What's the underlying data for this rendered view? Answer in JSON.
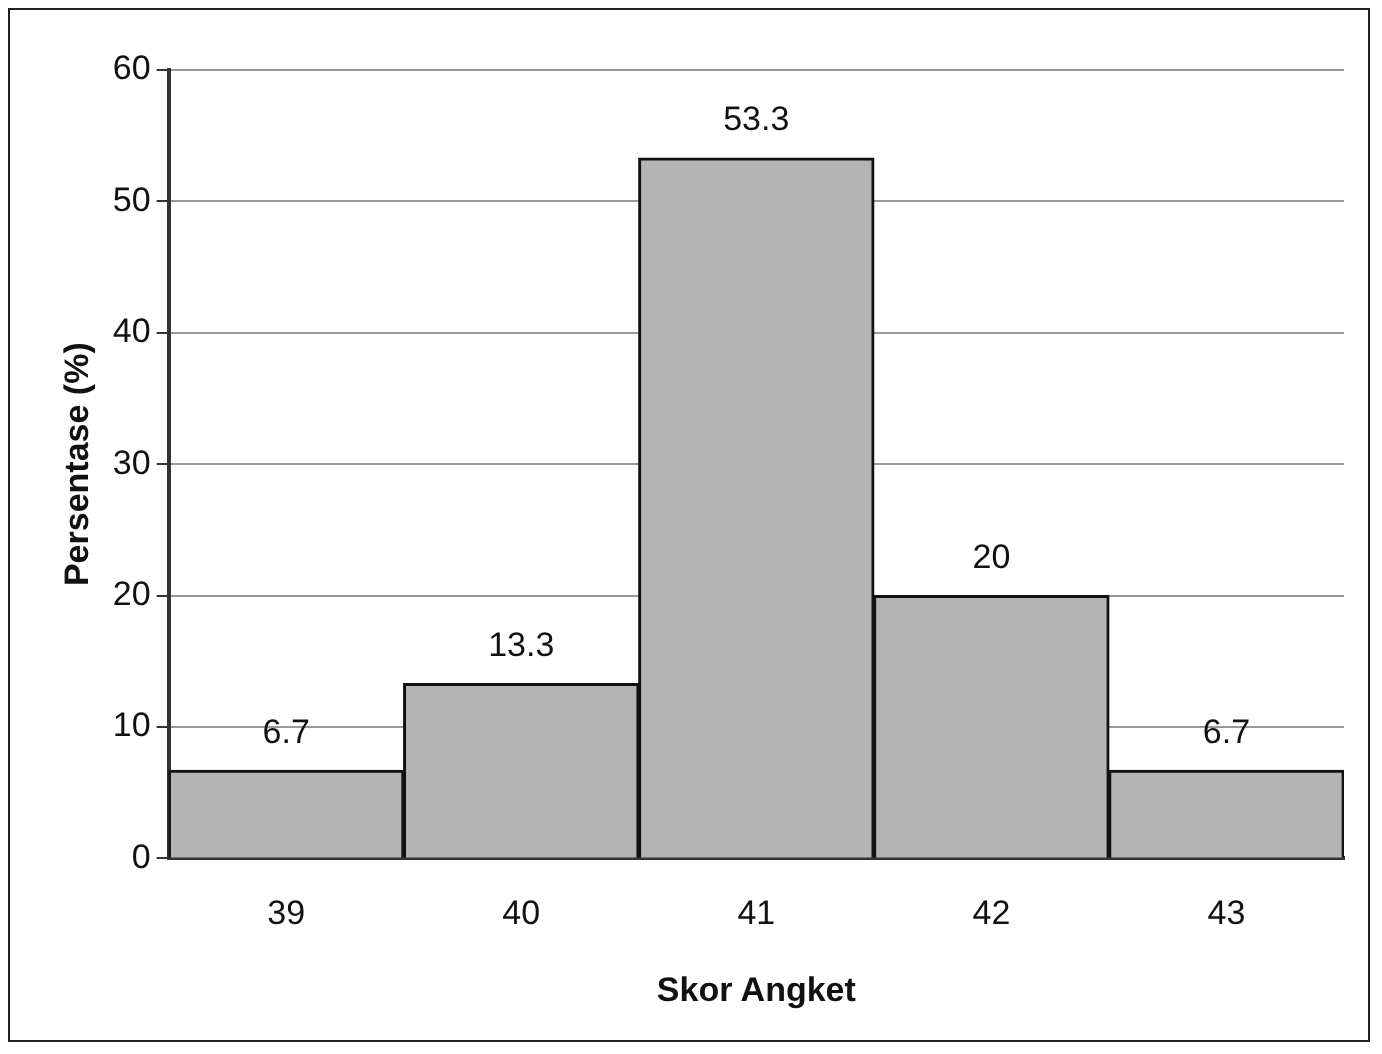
{
  "chart_data": {
    "type": "bar",
    "xlabel": "Skor Angket",
    "ylabel": "Persentase (%)",
    "categories": [
      "39",
      "40",
      "41",
      "42",
      "43"
    ],
    "values": [
      6.7,
      13.3,
      53.3,
      20,
      6.7
    ],
    "color": "#b4b4b4",
    "ylim": [
      0,
      60
    ],
    "yticks": [
      0,
      10,
      20,
      30,
      40,
      50,
      60
    ],
    "grid": "y",
    "data_labels": true,
    "legend": false
  }
}
